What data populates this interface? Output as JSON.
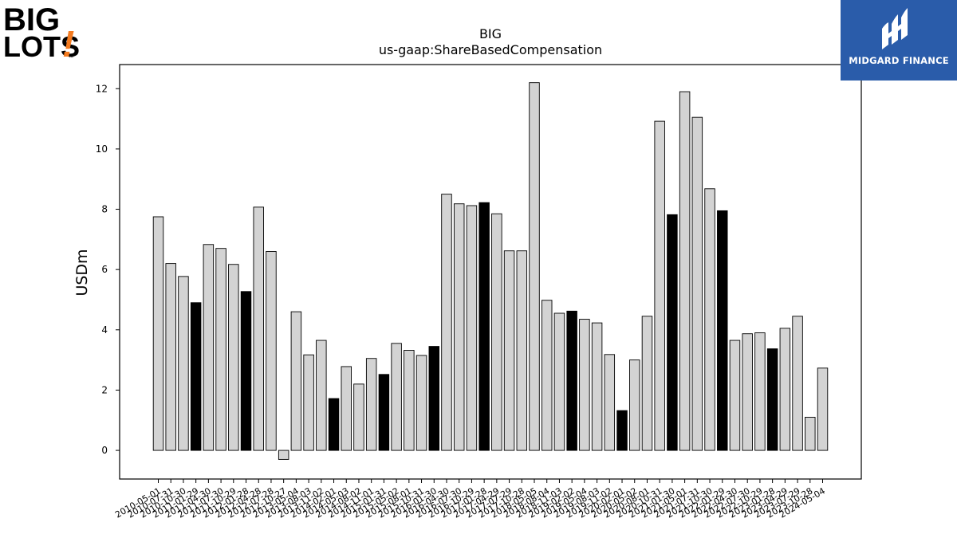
{
  "logos": {
    "left_text_line1": "BIG",
    "left_text_line2": "LOTS",
    "left_exclaim": "!",
    "left_tm": "™",
    "right_text": "MIDGARD FINANCE",
    "right_color": "#2a5caa",
    "left_accent_color": "#f47b20"
  },
  "chart_data": {
    "type": "bar",
    "title": "BIG",
    "subtitle": "us-gaap:ShareBasedCompensation",
    "xlabel": "",
    "ylabel": "USDm",
    "ylim": [
      -0.95,
      12.8
    ],
    "yticks": [
      0,
      2,
      4,
      6,
      8,
      10,
      12
    ],
    "grid": false,
    "legend": "none",
    "bar_fill_default": "#d3d3d3",
    "bar_fill_highlight": "#000000",
    "categories": [
      "2010-05-01",
      "2010-07-31",
      "2010-10-30",
      "2011-01-29",
      "2011-04-30",
      "2011-07-30",
      "2011-10-29",
      "2012-01-28",
      "2012-04-28",
      "2012-07-28",
      "2012-10-27",
      "2013-05-04",
      "2013-08-03",
      "2013-11-02",
      "2014-02-01",
      "2014-05-03",
      "2014-08-02",
      "2014-11-01",
      "2015-01-31",
      "2015-05-02",
      "2015-08-01",
      "2015-10-31",
      "2016-01-30",
      "2016-04-30",
      "2016-07-30",
      "2016-10-29",
      "2017-01-28",
      "2017-04-29",
      "2017-07-29",
      "2017-10-28",
      "2018-05-05",
      "2018-08-04",
      "2018-11-03",
      "2019-02-02",
      "2019-05-04",
      "2019-08-03",
      "2019-11-02",
      "2020-02-01",
      "2020-05-02",
      "2020-08-01",
      "2020-10-31",
      "2021-01-30",
      "2021-05-01",
      "2021-07-31",
      "2021-10-30",
      "2022-01-29",
      "2022-04-30",
      "2022-07-30",
      "2022-10-29",
      "2023-01-28",
      "2023-04-29",
      "2023-07-29",
      "2023-10-28",
      "2024-05-04"
    ],
    "values": [
      7.75,
      6.2,
      5.77,
      4.9,
      6.83,
      6.7,
      6.17,
      5.27,
      8.07,
      6.6,
      -0.3,
      4.6,
      3.17,
      3.65,
      1.72,
      2.78,
      2.2,
      3.05,
      2.52,
      3.55,
      3.32,
      3.15,
      3.45,
      8.5,
      8.18,
      8.12,
      8.22,
      7.85,
      6.62,
      6.62,
      12.2,
      4.98,
      4.55,
      4.62,
      4.35,
      4.23,
      3.18,
      1.32,
      3.0,
      4.45,
      10.92,
      7.82,
      11.9,
      11.05,
      8.68,
      7.95,
      3.65,
      3.87,
      3.9,
      3.37,
      4.05,
      4.45,
      1.1,
      2.73
    ],
    "highlighted": [
      false,
      false,
      false,
      true,
      false,
      false,
      false,
      true,
      false,
      false,
      false,
      false,
      false,
      false,
      true,
      false,
      false,
      false,
      true,
      false,
      false,
      false,
      true,
      false,
      false,
      false,
      true,
      false,
      false,
      false,
      false,
      false,
      false,
      true,
      false,
      false,
      false,
      true,
      false,
      false,
      false,
      true,
      false,
      false,
      false,
      true,
      false,
      false,
      false,
      true,
      false,
      false,
      false,
      false
    ]
  }
}
